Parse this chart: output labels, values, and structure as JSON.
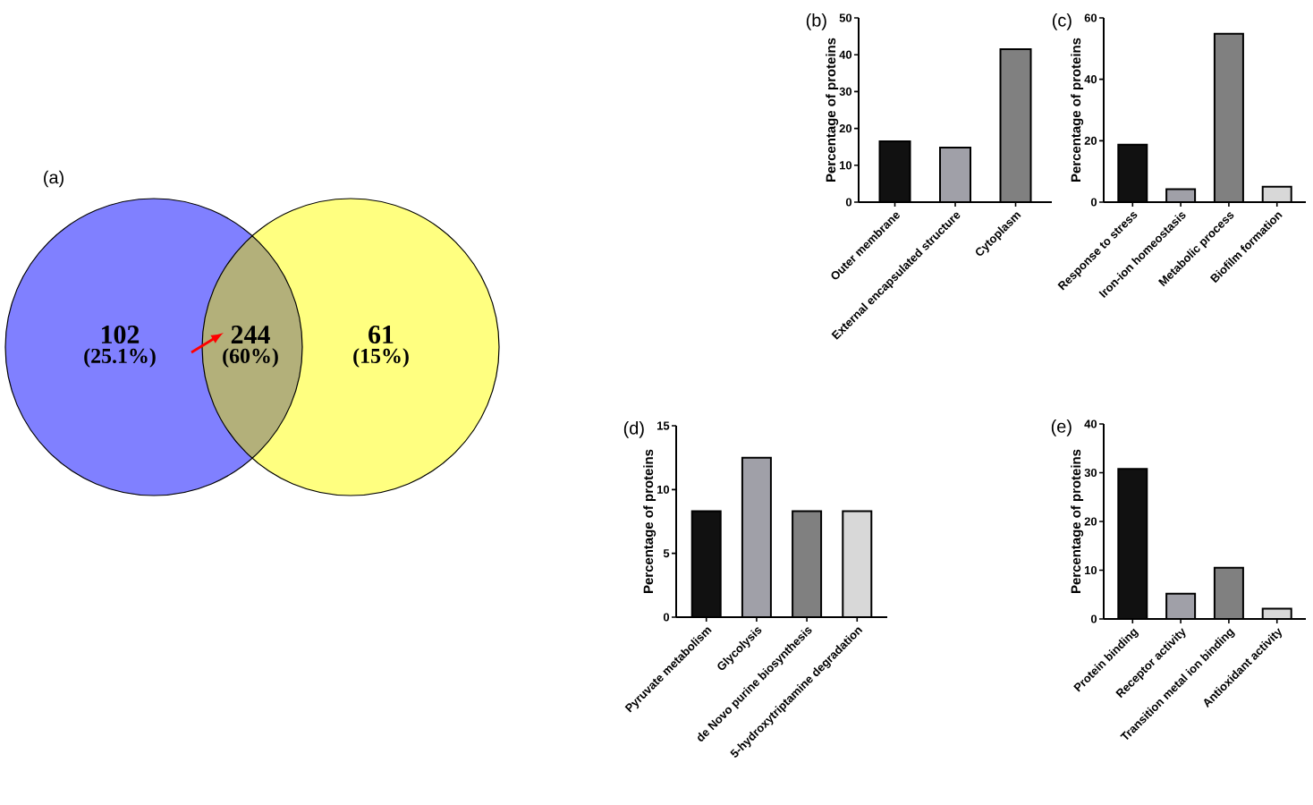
{
  "chart_data": [
    {
      "type": "other",
      "title": "(a)",
      "categories": [
        "102",
        "244",
        "61"
      ],
      "values": [
        25.1,
        60,
        15
      ],
      "value_labels": [
        "(25.1%)",
        "(60%)",
        "(15%)"
      ],
      "colors": [
        "#8080ff",
        "#b3b07a",
        "#ffff80"
      ]
    },
    {
      "type": "bar",
      "title": "(b)",
      "ylabel": "Percentage of proteins",
      "categories": [
        "Outer membrane",
        "External encapsulated structure",
        "Cytoplasm"
      ],
      "values": [
        16.5,
        14.8,
        41.5
      ],
      "colors": [
        "#111111",
        "#a0a0a8",
        "#808080"
      ],
      "ylim": [
        0,
        50
      ],
      "yticks": [
        0,
        10,
        20,
        30,
        40,
        50
      ]
    },
    {
      "type": "bar",
      "title": "(c)",
      "ylabel": "Percentage of proteins",
      "categories": [
        "Response to stress",
        "Iron-ion homeostasis",
        "Metabolic process",
        "Biofilm formation"
      ],
      "values": [
        18.7,
        4.2,
        54.8,
        5.0
      ],
      "colors": [
        "#111111",
        "#a0a0a8",
        "#808080",
        "#d8d8d8"
      ],
      "ylim": [
        0,
        60
      ],
      "yticks": [
        0,
        20,
        40,
        60
      ]
    },
    {
      "type": "bar",
      "title": "(d)",
      "ylabel": "Percentage of proteins",
      "categories": [
        "Pyruvate metabolism",
        "Glycolysis",
        "de Novo purine biosynthesis",
        "5-hydroxytriptamine degradation"
      ],
      "values": [
        8.3,
        12.5,
        8.3,
        8.3
      ],
      "colors": [
        "#111111",
        "#a0a0a8",
        "#808080",
        "#d8d8d8"
      ],
      "ylim": [
        0,
        15
      ],
      "yticks": [
        0,
        5,
        10,
        15
      ]
    },
    {
      "type": "bar",
      "title": "(e)",
      "ylabel": "Percentage of proteins",
      "categories": [
        "Protein binding",
        "Receptor activity",
        "Transition metal ion binding",
        "Antioxidant activity"
      ],
      "values": [
        30.8,
        5.2,
        10.5,
        2.1
      ],
      "colors": [
        "#111111",
        "#a0a0a8",
        "#808080",
        "#d8d8d8"
      ],
      "ylim": [
        0,
        40
      ],
      "yticks": [
        0,
        10,
        20,
        30,
        40
      ]
    }
  ]
}
